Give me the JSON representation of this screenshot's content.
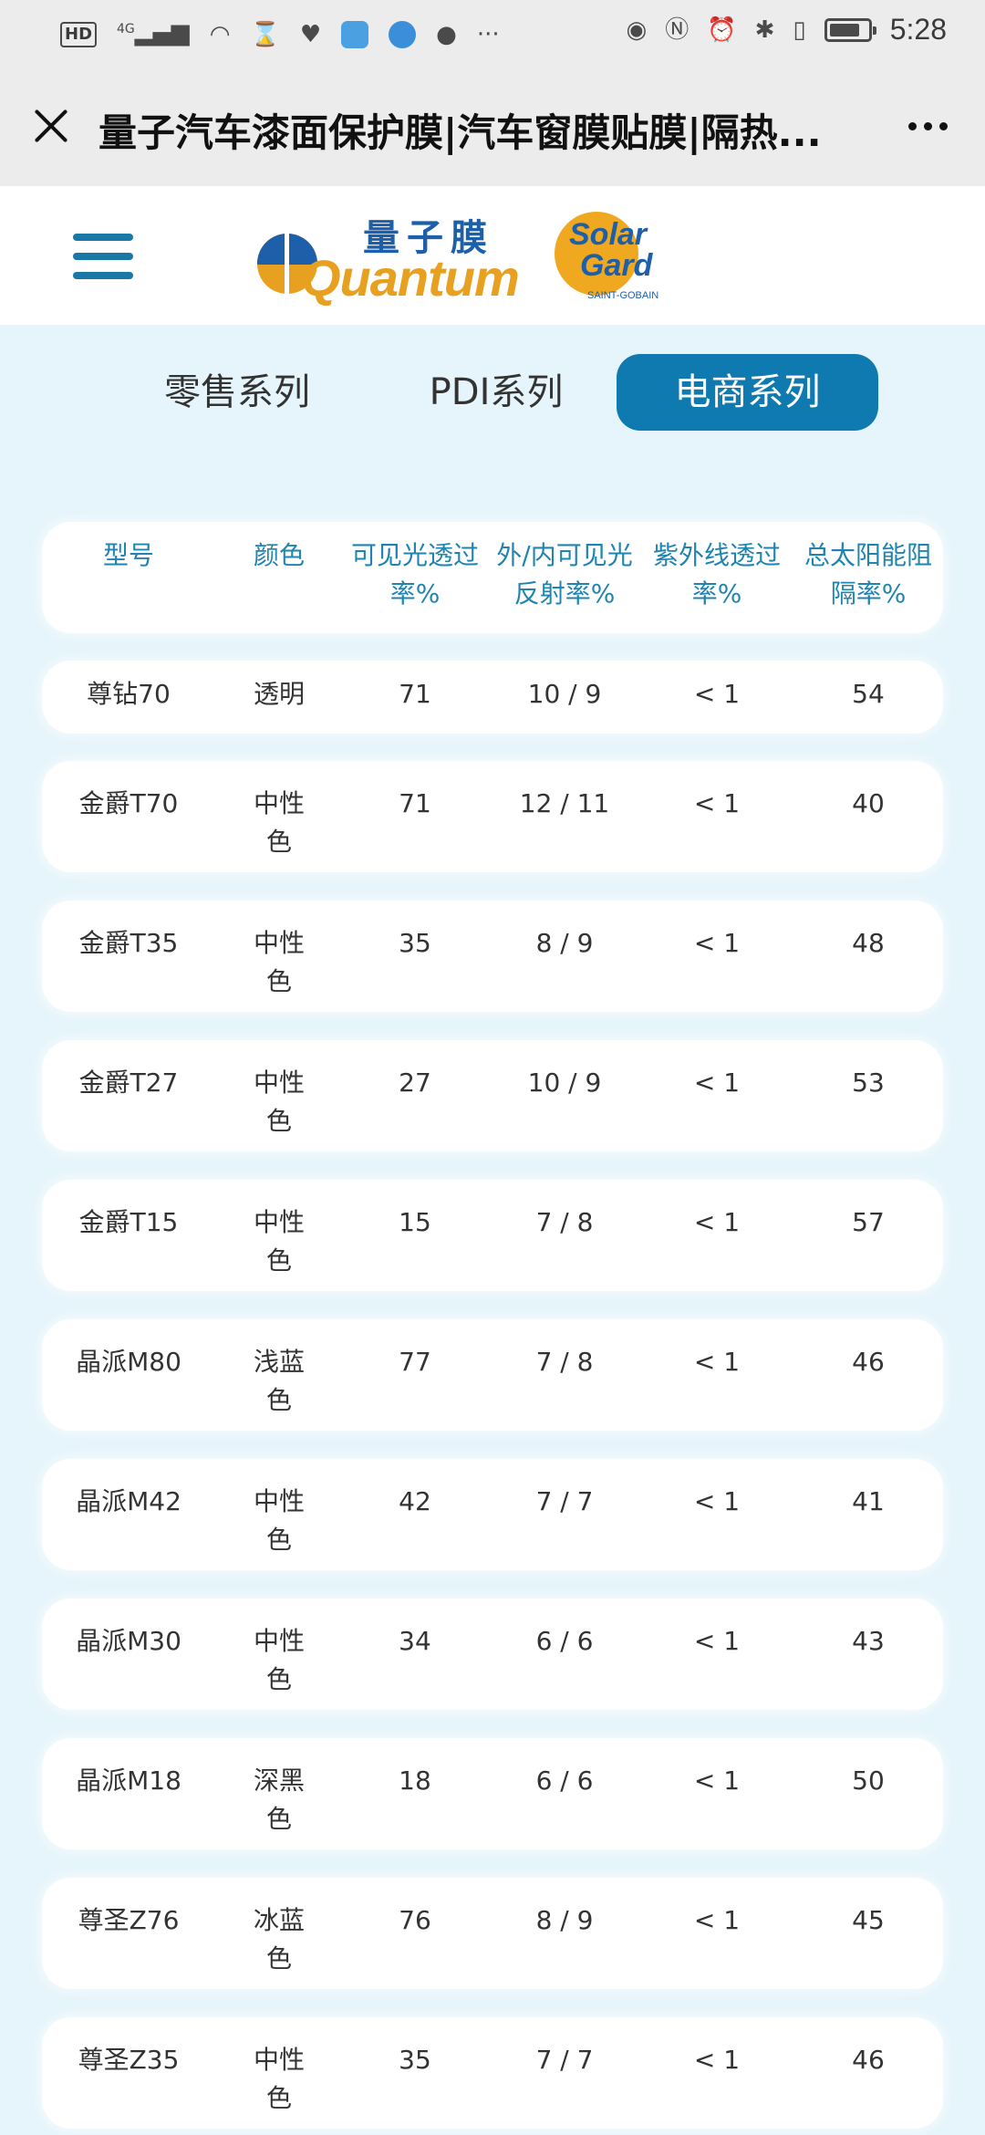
{
  "status_bar": {
    "network": "4G",
    "time": "5:28",
    "left_icons": [
      "hd-icon",
      "signal-icon",
      "wifi-icon",
      "hourglass-icon",
      "heart-pulse-icon",
      "app-icon",
      "globe-app-icon",
      "chat-icon",
      "more-dots-icon"
    ],
    "right_icons": [
      "eye-icon",
      "nfc-icon",
      "alarm-icon",
      "bluetooth-icon",
      "vibrate-icon",
      "battery-icon"
    ]
  },
  "titlebar": {
    "title": "量子汽车漆面保护膜|汽车窗膜贴膜|隔热..."
  },
  "header": {
    "logo_quantum_cn": "量子膜",
    "logo_quantum_en": "Quantum",
    "logo_solargard_1": "Solar",
    "logo_solargard_2": "Gard",
    "logo_solargard_sub": "SAINT-GOBAIN"
  },
  "tabs": [
    {
      "label": "零售系列",
      "active": false
    },
    {
      "label": "PDI系列",
      "active": false
    },
    {
      "label": "电商系列",
      "active": true
    }
  ],
  "colors": {
    "accent": "#0f7ab0",
    "header_text": "#1f84b0",
    "background": "#e6f5fb"
  },
  "table": {
    "headers": [
      [
        "型号"
      ],
      [
        "颜色"
      ],
      [
        "可见光透过",
        "率%"
      ],
      [
        "外/内可见光",
        "反射率%"
      ],
      [
        "紫外线透过",
        "率%"
      ],
      [
        "总太阳能阻",
        "隔率%"
      ]
    ],
    "rows": [
      {
        "model": "尊钻70",
        "color": [
          "透明"
        ],
        "vlt": "71",
        "vlr": "10 / 9",
        "uv": "< 1",
        "tser": "54"
      },
      {
        "model": "金爵T70",
        "color": [
          "中性",
          "色"
        ],
        "vlt": "71",
        "vlr": "12 / 11",
        "uv": "< 1",
        "tser": "40"
      },
      {
        "model": "金爵T35",
        "color": [
          "中性",
          "色"
        ],
        "vlt": "35",
        "vlr": "8 / 9",
        "uv": "< 1",
        "tser": "48"
      },
      {
        "model": "金爵T27",
        "color": [
          "中性",
          "色"
        ],
        "vlt": "27",
        "vlr": "10 / 9",
        "uv": "< 1",
        "tser": "53"
      },
      {
        "model": "金爵T15",
        "color": [
          "中性",
          "色"
        ],
        "vlt": "15",
        "vlr": "7 / 8",
        "uv": "< 1",
        "tser": "57"
      },
      {
        "model": "晶派M80",
        "color": [
          "浅蓝",
          "色"
        ],
        "vlt": "77",
        "vlr": "7 / 8",
        "uv": "< 1",
        "tser": "46"
      },
      {
        "model": "晶派M42",
        "color": [
          "中性",
          "色"
        ],
        "vlt": "42",
        "vlr": "7 / 7",
        "uv": "< 1",
        "tser": "41"
      },
      {
        "model": "晶派M30",
        "color": [
          "中性",
          "色"
        ],
        "vlt": "34",
        "vlr": "6 / 6",
        "uv": "< 1",
        "tser": "43"
      },
      {
        "model": "晶派M18",
        "color": [
          "深黑",
          "色"
        ],
        "vlt": "18",
        "vlr": "6 / 6",
        "uv": "< 1",
        "tser": "50"
      },
      {
        "model": "尊圣Z76",
        "color": [
          "冰蓝",
          "色"
        ],
        "vlt": "76",
        "vlr": "8 / 9",
        "uv": "< 1",
        "tser": "45"
      },
      {
        "model": "尊圣Z35",
        "color": [
          "中性",
          "色"
        ],
        "vlt": "35",
        "vlr": "7 / 7",
        "uv": "< 1",
        "tser": "46"
      }
    ]
  }
}
